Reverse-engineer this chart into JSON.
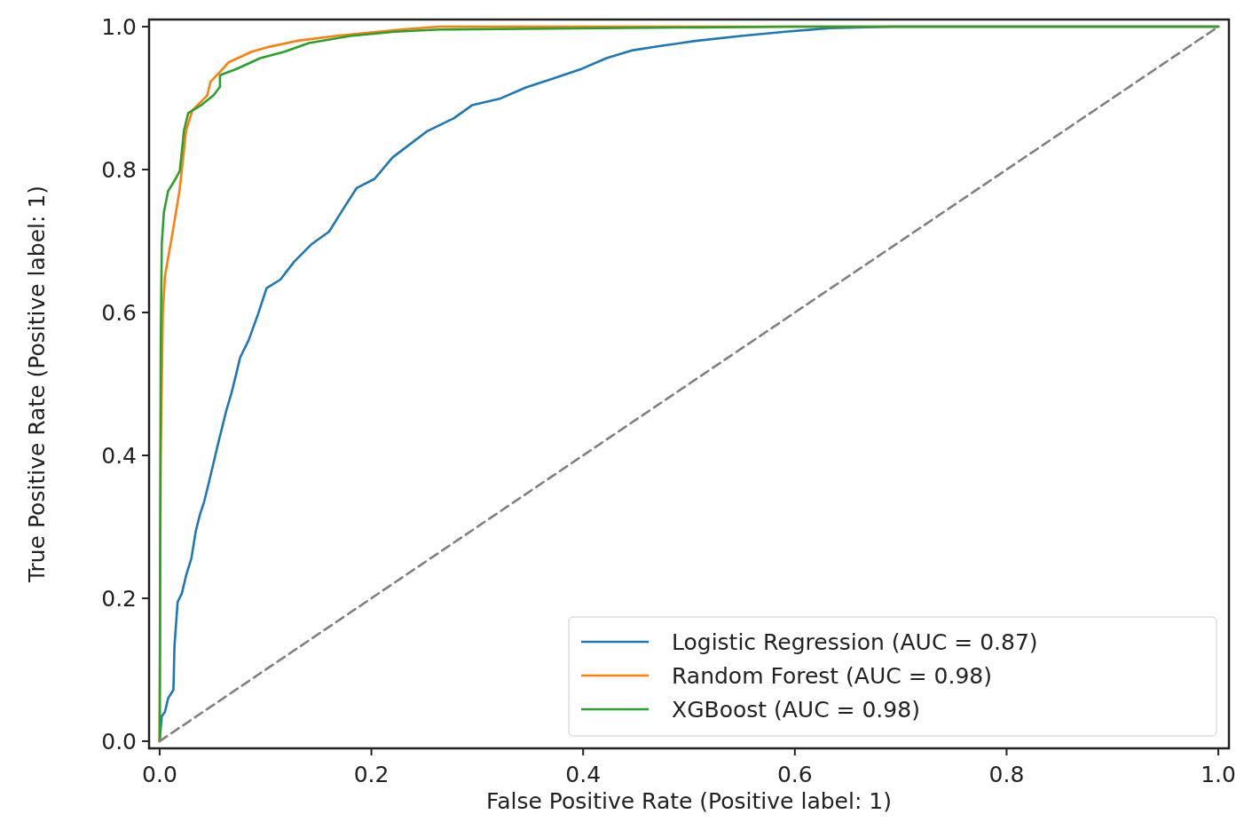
{
  "chart_data": {
    "type": "line",
    "xlabel": "False Positive Rate (Positive label: 1)",
    "ylabel": "True Positive Rate (Positive label: 1)",
    "xlim": [
      -0.01,
      1.01
    ],
    "ylim": [
      -0.01,
      1.01
    ],
    "xticks": [
      {
        "value": 0,
        "label": "0.0"
      },
      0.2,
      0.4,
      0.6,
      0.8,
      {
        "value": 1,
        "label": "1.0"
      }
    ],
    "yticks": [
      {
        "value": 0,
        "label": "0.0"
      },
      0.2,
      0.4,
      0.6,
      0.8,
      {
        "value": 1,
        "label": "1.0"
      }
    ],
    "grid": false,
    "legend": "bottom right",
    "marker": "none",
    "line_style": "solid",
    "series": [
      {
        "name": "Logistic Regression (AUC = 0.87)",
        "color": "#1f77b4",
        "x": [
          0,
          0.002,
          0.005,
          0.008,
          0.013,
          0.014,
          0.017,
          0.021,
          0.025,
          0.03,
          0.034,
          0.038,
          0.042,
          0.046,
          0.051,
          0.055,
          0.059,
          0.063,
          0.068,
          0.072,
          0.076,
          0.084,
          0.093,
          0.101,
          0.114,
          0.127,
          0.143,
          0.16,
          0.173,
          0.186,
          0.203,
          0.22,
          0.236,
          0.253,
          0.278,
          0.295,
          0.321,
          0.346,
          0.371,
          0.397,
          0.422,
          0.447,
          0.473,
          0.506,
          0.549,
          0.591,
          0.633,
          0.692,
          1
        ],
        "values": [
          0,
          0.035,
          0.041,
          0.06,
          0.072,
          0.133,
          0.195,
          0.207,
          0.232,
          0.256,
          0.293,
          0.317,
          0.335,
          0.359,
          0.39,
          0.415,
          0.439,
          0.463,
          0.488,
          0.512,
          0.537,
          0.561,
          0.598,
          0.634,
          0.646,
          0.671,
          0.695,
          0.713,
          0.744,
          0.774,
          0.787,
          0.817,
          0.835,
          0.854,
          0.872,
          0.89,
          0.899,
          0.915,
          0.927,
          0.94,
          0.956,
          0.967,
          0.973,
          0.98,
          0.987,
          0.993,
          0.998,
          1,
          1
        ]
      },
      {
        "name": "Random Forest (AUC = 0.98)",
        "color": "#ff7f0e",
        "x": [
          0,
          0.001,
          0.003,
          0.005,
          0.012,
          0.019,
          0.025,
          0.031,
          0.045,
          0.048,
          0.059,
          0.065,
          0.087,
          0.101,
          0.129,
          0.166,
          0.228,
          0.264,
          1
        ],
        "values": [
          0,
          0.4,
          0.6,
          0.651,
          0.71,
          0.773,
          0.855,
          0.883,
          0.904,
          0.923,
          0.94,
          0.95,
          0.965,
          0.971,
          0.98,
          0.987,
          0.996,
          1,
          1
        ]
      },
      {
        "name": "XGBoost (AUC = 0.98)",
        "color": "#2ca02c",
        "x": [
          0,
          0.001,
          0.002,
          0.004,
          0.008,
          0.013,
          0.019,
          0.023,
          0.027,
          0.04,
          0.051,
          0.057,
          0.057,
          0.073,
          0.095,
          0.118,
          0.141,
          0.18,
          0.222,
          0.264,
          0.51,
          0.6,
          1
        ],
        "values": [
          0,
          0.55,
          0.696,
          0.74,
          0.77,
          0.782,
          0.798,
          0.855,
          0.879,
          0.891,
          0.904,
          0.916,
          0.932,
          0.941,
          0.956,
          0.965,
          0.977,
          0.987,
          0.993,
          0.996,
          0.999,
          1,
          1
        ]
      },
      {
        "color": "#808080",
        "line_style": "dashed",
        "x": [
          0,
          1
        ],
        "values": [
          0,
          1
        ]
      }
    ]
  }
}
